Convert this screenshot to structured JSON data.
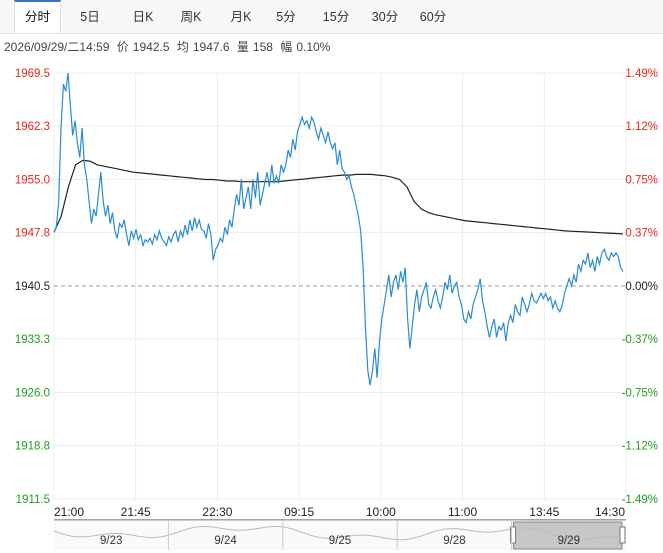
{
  "tabs": [
    {
      "label": "分时",
      "active": true
    },
    {
      "label": "5日",
      "active": false
    },
    {
      "label": "日K",
      "active": false
    },
    {
      "label": "周K",
      "active": false
    },
    {
      "label": "月K",
      "active": false
    },
    {
      "label": "5分",
      "active": false
    },
    {
      "label": "15分",
      "active": false
    },
    {
      "label": "30分",
      "active": false
    },
    {
      "label": "60分",
      "active": false
    }
  ],
  "info": {
    "datetime": "2026/09/29/二14:59",
    "price_label": "价",
    "price": "1942.5",
    "avg_label": "均",
    "avg": "1947.6",
    "volume_label": "量",
    "volume": "158",
    "amplitude_label": "幅",
    "amplitude": "0.10%"
  },
  "colors": {
    "up": "#e8261a",
    "down": "#1f9d1f",
    "neutral": "#222222",
    "price_line": "#2a8bd0",
    "avg_line": "#222222"
  },
  "chart_data": {
    "type": "line",
    "yticks": [
      "1969.5",
      "1962.3",
      "1955.0",
      "1947.8",
      "1940.5",
      "1933.3",
      "1926.0",
      "1918.8",
      "1911.5"
    ],
    "ytick_values": [
      1969.5,
      1962.3,
      1955.0,
      1947.8,
      1940.5,
      1933.3,
      1926.0,
      1918.8,
      1911.5
    ],
    "pct_ticks": [
      "1.49%",
      "1.12%",
      "0.75%",
      "0.37%",
      "0.00%",
      "-0.37%",
      "-0.75%",
      "-1.12%",
      "-1.49%"
    ],
    "ylim": [
      1911.5,
      1969.5
    ],
    "reference": 1940.5,
    "xticks": [
      "21:00",
      "21:45",
      "22:30",
      "09:15",
      "10:00",
      "11:00",
      "13:45",
      "14:30"
    ],
    "series": [
      {
        "role": "price",
        "values": [
          1947.8,
          1948.5,
          1952,
          1962,
          1968,
          1967,
          1969.5,
          1965,
          1961,
          1963,
          1960,
          1958,
          1962,
          1957,
          1955,
          1952,
          1949,
          1951,
          1950,
          1953,
          1956,
          1952,
          1950,
          1951.5,
          1949,
          1950.5,
          1948,
          1947,
          1949,
          1948.5,
          1949.5,
          1947.5,
          1946,
          1948,
          1947,
          1948.2,
          1946.8,
          1947.5,
          1946,
          1946.8,
          1946.5,
          1947,
          1946.2,
          1947.5,
          1946.8,
          1948,
          1947,
          1946.5,
          1946,
          1947.2,
          1946.5,
          1947.5,
          1948,
          1946.5,
          1948,
          1947.2,
          1948.8,
          1947.5,
          1949.5,
          1948,
          1949.8,
          1948.5,
          1949.5,
          1948.2,
          1948,
          1947,
          1949,
          1947.5,
          1944,
          1945.5,
          1946,
          1947,
          1946.5,
          1948.5,
          1947.5,
          1949.5,
          1948.5,
          1951,
          1953,
          1951.5,
          1955,
          1951,
          1952.5,
          1954,
          1951,
          1955,
          1952.5,
          1956,
          1951.5,
          1953,
          1954.5,
          1956,
          1954,
          1957,
          1954.5,
          1955.5,
          1954.5,
          1957,
          1956,
          1957,
          1959,
          1958,
          1960.5,
          1959,
          1961.5,
          1962.5,
          1963.5,
          1962.5,
          1963,
          1962,
          1963.5,
          1962.8,
          1961.5,
          1960.5,
          1962,
          1961,
          1960,
          1961.5,
          1960,
          1959.2,
          1960,
          1957,
          1959,
          1956.5,
          1956,
          1955,
          1955.5,
          1954,
          1953,
          1951.5,
          1950,
          1948,
          1943,
          1935,
          1929,
          1927,
          1929,
          1932,
          1928,
          1933,
          1936,
          1938,
          1940,
          1942,
          1939,
          1941,
          1942,
          1940,
          1942.5,
          1941,
          1943,
          1936,
          1932,
          1935,
          1938,
          1940,
          1937,
          1939,
          1940,
          1941,
          1938,
          1937.5,
          1939,
          1940,
          1938.5,
          1937.5,
          1939,
          1941,
          1940,
          1942,
          1939.5,
          1940.5,
          1941,
          1939,
          1938,
          1936,
          1935.5,
          1937,
          1936,
          1938,
          1939,
          1940,
          1941.5,
          1938.5,
          1937,
          1935,
          1933.5,
          1935,
          1936,
          1933.5,
          1935,
          1934.5,
          1935.5,
          1933,
          1935.5,
          1936.5,
          1935.5,
          1938,
          1937,
          1936.5,
          1939,
          1938,
          1937,
          1938,
          1939.5,
          1938.5,
          1938.2,
          1938.8,
          1939.5,
          1938.8,
          1939.5,
          1938.5,
          1939,
          1937.5,
          1938.5,
          1937.5,
          1937,
          1937.8,
          1939.5,
          1940.5,
          1941.5,
          1940.5,
          1942,
          1941,
          1943.5,
          1942.5,
          1944,
          1943.5,
          1945,
          1943,
          1944,
          1942.5,
          1944.5,
          1943.5,
          1945,
          1945.5,
          1944.5,
          1944,
          1945,
          1944.5,
          1945,
          1944.5,
          1943,
          1942.5
        ]
      },
      {
        "role": "average",
        "values": [
          1947.8,
          1950,
          1954,
          1957,
          1957.6,
          1957.5,
          1957,
          1956.8,
          1956.6,
          1956.4,
          1956.2,
          1956,
          1955.9,
          1955.8,
          1955.7,
          1955.6,
          1955.5,
          1955.4,
          1955.3,
          1955.2,
          1955.1,
          1955.0,
          1955.0,
          1954.9,
          1954.8,
          1954.8,
          1954.7,
          1954.7,
          1954.7,
          1954.7,
          1954.7,
          1954.7,
          1954.8,
          1954.9,
          1955.0,
          1955.1,
          1955.2,
          1955.3,
          1955.4,
          1955.5,
          1955.6,
          1955.6,
          1955.7,
          1955.7,
          1955.7,
          1955.6,
          1955.5,
          1955.3,
          1955,
          1954,
          1952,
          1951,
          1950.5,
          1950.2,
          1950,
          1949.8,
          1949.6,
          1949.4,
          1949.3,
          1949.2,
          1949.1,
          1949.0,
          1948.9,
          1948.8,
          1948.7,
          1948.6,
          1948.5,
          1948.4,
          1948.3,
          1948.2,
          1948.1,
          1948.0,
          1947.95,
          1947.9,
          1947.85,
          1947.8,
          1947.75,
          1947.7,
          1947.65,
          1947.6
        ]
      }
    ],
    "navigator": {
      "dates": [
        "9/23",
        "9/24",
        "9/25",
        "9/28",
        "9/29"
      ]
    }
  }
}
